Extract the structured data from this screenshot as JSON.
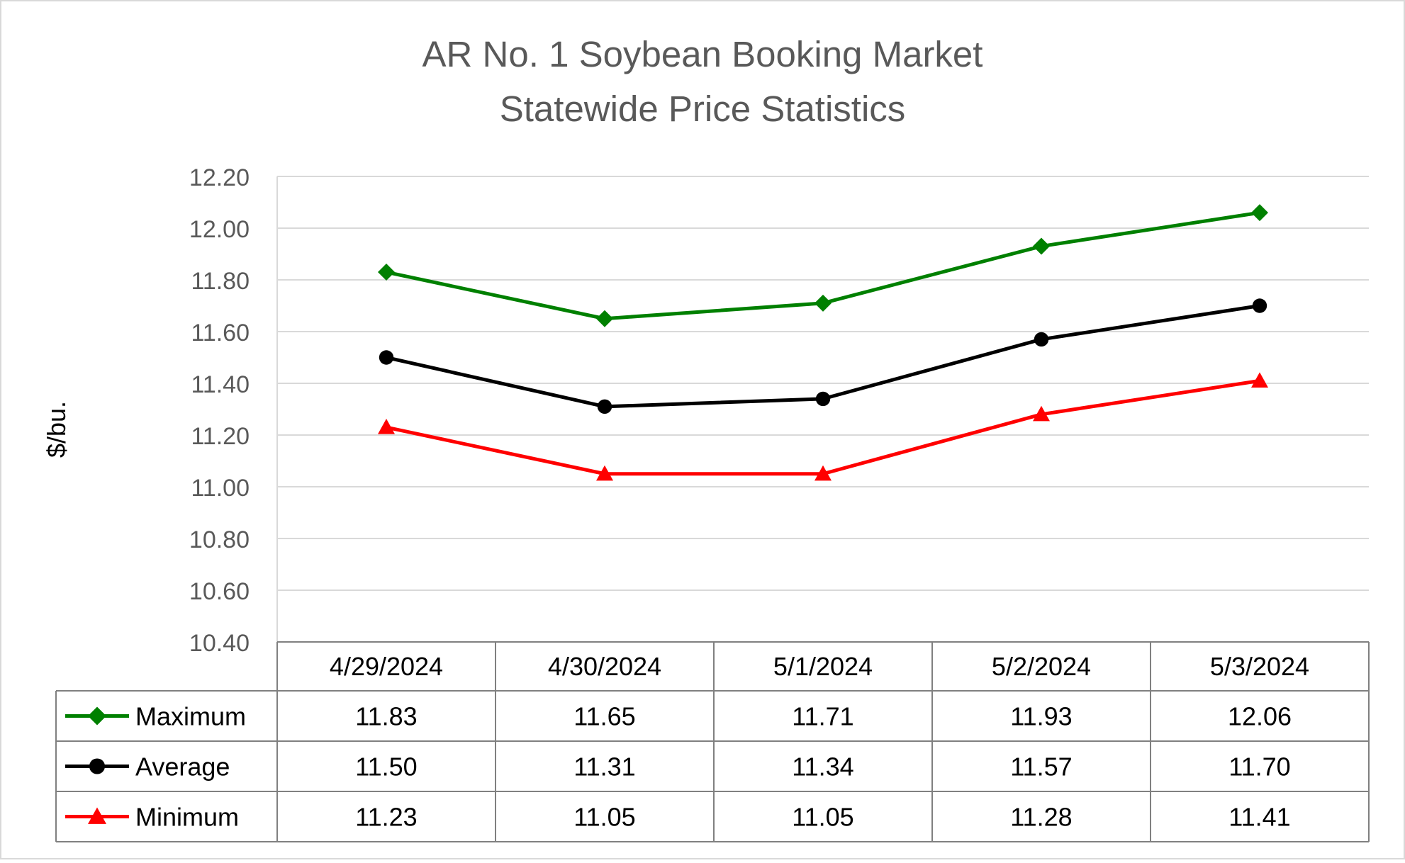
{
  "chart_data": {
    "type": "line",
    "title": [
      "AR No. 1 Soybean Booking Market",
      "Statewide Price Statistics"
    ],
    "ylabel": "$/bu.",
    "ylim": [
      10.4,
      12.2
    ],
    "yticks": [
      "10.40",
      "10.60",
      "10.80",
      "11.00",
      "11.20",
      "11.40",
      "11.60",
      "11.80",
      "12.00",
      "12.20"
    ],
    "categories": [
      "4/29/2024",
      "4/30/2024",
      "5/1/2024",
      "5/2/2024",
      "5/3/2024"
    ],
    "grid": true,
    "legend": "data-table",
    "series": [
      {
        "name": "Maximum",
        "color": "#008000",
        "marker": "diamond",
        "values": [
          11.83,
          11.65,
          11.71,
          11.93,
          12.06
        ],
        "labels": [
          "11.83",
          "11.65",
          "11.71",
          "11.93",
          "12.06"
        ]
      },
      {
        "name": "Average",
        "color": "#000000",
        "marker": "circle",
        "values": [
          11.5,
          11.31,
          11.34,
          11.57,
          11.7
        ],
        "labels": [
          "11.50",
          "11.31",
          "11.34",
          "11.57",
          "11.70"
        ]
      },
      {
        "name": "Minimum",
        "color": "#ff0000",
        "marker": "triangle",
        "values": [
          11.23,
          11.05,
          11.05,
          11.28,
          11.41
        ],
        "labels": [
          "11.23",
          "11.05",
          "11.05",
          "11.28",
          "11.41"
        ]
      }
    ]
  }
}
